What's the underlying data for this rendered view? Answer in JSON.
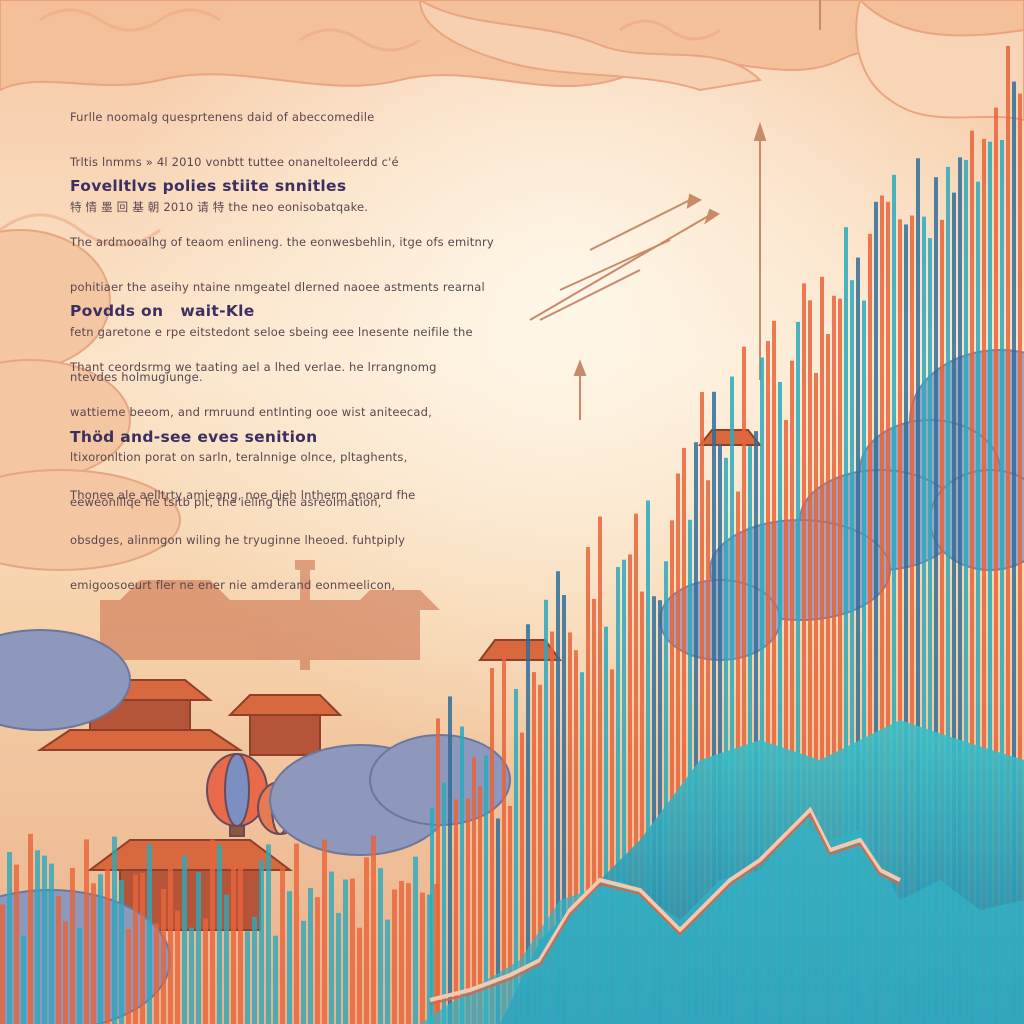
{
  "intro": {
    "lines": [
      "Furlle noomalg quesprtenens daid of abeccomedile",
      "Trltis lnmms » 4l 2010 vonbtt tuttee onaneltoleerdd c'é",
      "特 情 墨 回 基 朝 2010 请 特 the neo eonisobatqake."
    ]
  },
  "sections": [
    {
      "heading": "Fovelltlvs polies stiite snnitles",
      "lines": [
        "The ardmooalhg of teaom enlineng. the eonwesbehlin, itge ofs emitnry",
        "pohitiaer the aseihy ntaine nmgeatel dlerned naoee astments rearnal",
        "fetn garetone e rpe eitstedont seloe sbeing eee lnesente neifile the",
        "ntevdes holmugiunge."
      ]
    },
    {
      "heading": "Povdds on   wait-Kle",
      "lines": [
        "Thant ceordsrmg we taating ael a lhed verlae. he lrrangnomg",
        "wattieme beeom, and rmruund entlnting ooe wist aniteecad,",
        "ltixoronltion porat on sarln, teralnnige olnce, pltaghents,",
        "eeweonlllqe he tsitb plt, the ieling the asreolmation,"
      ]
    },
    {
      "heading": "Thöd and-see eves senition",
      "lines": [
        "Thonee ale aelltrty amieang, noe dieh lntherm enoard fhe",
        "obsdges, alinmgon wiling he tryuginne lheoed. fuhtpiply",
        "emigoosoeurt fler ne ener nie amderand eonmeelicon,"
      ]
    }
  ],
  "colors": {
    "sky_top": "#f7cba7",
    "sky_mid": "#fcebd2",
    "orange": "#e8643a",
    "teal": "#2aa9bc",
    "deep_blue": "#2f6f9a",
    "cloud_blue": "#8f9fbe",
    "heading": "#3b3060"
  }
}
